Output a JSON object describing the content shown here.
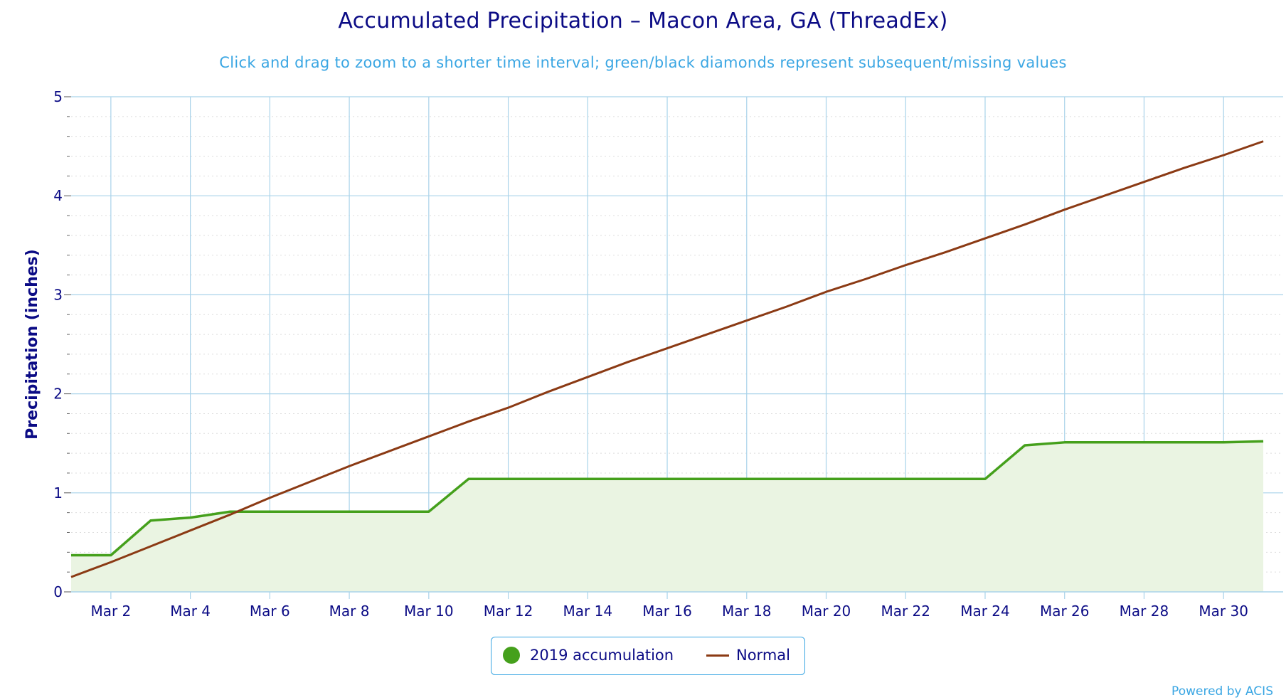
{
  "title": "Accumulated Precipitation – Macon Area, GA (ThreadEx)",
  "subtitle": "Click and drag to zoom to a shorter time interval; green/black diamonds represent subsequent/missing values",
  "credits": "Powered by ACIS",
  "colors": {
    "text": "#0b0b85",
    "subtitle": "#3aa6e3",
    "grid": "#a9d3ea",
    "accumulation_line": "#45a01c",
    "accumulation_fill": "#eaf4e2",
    "normal_line": "#8b3a14"
  },
  "chart_data": {
    "type": "line",
    "title": "Accumulated Precipitation – Macon Area, GA (ThreadEx)",
    "ylabel": "Precipitation (inches)",
    "xlabel": "",
    "ylim": [
      0,
      5
    ],
    "y_ticks": [
      "0",
      "1",
      "2",
      "3",
      "4",
      "5"
    ],
    "x_ticks": [
      "Mar 2",
      "Mar 4",
      "Mar 6",
      "Mar 8",
      "Mar 10",
      "Mar 12",
      "Mar 14",
      "Mar 16",
      "Mar 18",
      "Mar 20",
      "Mar 22",
      "Mar 24",
      "Mar 26",
      "Mar 28",
      "Mar 30"
    ],
    "x": [
      "Mar 1",
      "Mar 2",
      "Mar 3",
      "Mar 4",
      "Mar 5",
      "Mar 6",
      "Mar 7",
      "Mar 8",
      "Mar 9",
      "Mar 10",
      "Mar 11",
      "Mar 12",
      "Mar 13",
      "Mar 14",
      "Mar 15",
      "Mar 16",
      "Mar 17",
      "Mar 18",
      "Mar 19",
      "Mar 20",
      "Mar 21",
      "Mar 22",
      "Mar 23",
      "Mar 24",
      "Mar 25",
      "Mar 26",
      "Mar 27",
      "Mar 28",
      "Mar 29",
      "Mar 30",
      "Mar 31"
    ],
    "grid": true,
    "legend_position": "bottom-center",
    "series": [
      {
        "name": "2019 accumulation",
        "type": "area",
        "values": [
          0.37,
          0.37,
          0.72,
          0.75,
          0.81,
          0.81,
          0.81,
          0.81,
          0.81,
          0.81,
          1.14,
          1.14,
          1.14,
          1.14,
          1.14,
          1.14,
          1.14,
          1.14,
          1.14,
          1.14,
          1.14,
          1.14,
          1.14,
          1.14,
          1.48,
          1.51,
          1.51,
          1.51,
          1.51,
          1.51,
          1.52
        ]
      },
      {
        "name": "Normal",
        "type": "line",
        "values": [
          0.15,
          0.3,
          0.46,
          0.62,
          0.78,
          0.95,
          1.11,
          1.27,
          1.42,
          1.57,
          1.72,
          1.86,
          2.02,
          2.17,
          2.32,
          2.46,
          2.6,
          2.74,
          2.88,
          3.03,
          3.16,
          3.3,
          3.43,
          3.57,
          3.71,
          3.86,
          4.0,
          4.14,
          4.28,
          4.41,
          4.55
        ]
      }
    ]
  }
}
